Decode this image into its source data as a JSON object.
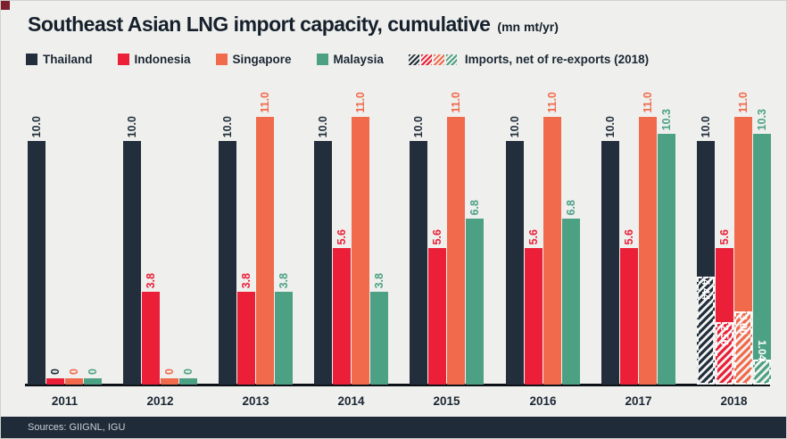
{
  "header": {
    "title": "Southeast Asian LNG import capacity, cumulative",
    "unit": "(mn mt/yr)"
  },
  "legend": {
    "items": [
      {
        "label": "Thailand",
        "color": "#222e3c"
      },
      {
        "label": "Indonesia",
        "color": "#eb1f38"
      },
      {
        "label": "Singapore",
        "color": "#f16a4c"
      },
      {
        "label": "Malaysia",
        "color": "#4ca184"
      }
    ],
    "imports_item": {
      "label": "Imports, net of re-exports (2018)",
      "swatch_colors": [
        "#222e3c",
        "#eb1f38",
        "#f16a4c",
        "#4ca184"
      ]
    }
  },
  "chart_data": {
    "type": "bar",
    "title": "Southeast Asian LNG import capacity, cumulative",
    "xlabel": "",
    "ylabel": "mn mt/yr",
    "ylim": [
      0,
      11.5
    ],
    "grid": false,
    "legend_position": "top",
    "categories": [
      "2011",
      "2012",
      "2013",
      "2014",
      "2015",
      "2016",
      "2017",
      "2018"
    ],
    "series": [
      {
        "name": "Thailand",
        "color": "#222e3c",
        "values": [
          10.0,
          10.0,
          10.0,
          10.0,
          10.0,
          10.0,
          10.0,
          10.0
        ],
        "labels": [
          "10.0",
          "10.0",
          "10.0",
          "10.0",
          "10.0",
          "10.0",
          "10.0",
          "10.0"
        ]
      },
      {
        "name": "Indonesia",
        "color": "#eb1f38",
        "values": [
          0,
          3.8,
          3.8,
          5.6,
          5.6,
          5.6,
          5.6,
          5.6
        ],
        "labels": [
          "0",
          "3.8",
          "3.8",
          "5.6",
          "5.6",
          "5.6",
          "5.6",
          "5.6"
        ]
      },
      {
        "name": "Singapore",
        "color": "#f16a4c",
        "values": [
          0,
          0,
          11.0,
          11.0,
          11.0,
          11.0,
          11.0,
          11.0
        ],
        "labels": [
          "0",
          "0",
          "11.0",
          "11.0",
          "11.0",
          "11.0",
          "11.0",
          "11.0"
        ]
      },
      {
        "name": "Malaysia",
        "color": "#4ca184",
        "values": [
          0,
          0,
          3.8,
          3.8,
          6.8,
          6.8,
          10.3,
          10.3
        ],
        "labels": [
          "0",
          "0",
          "3.8",
          "3.8",
          "6.8",
          "6.8",
          "10.3",
          "10.3"
        ]
      }
    ],
    "label_overrides": [
      {
        "series": "Indonesia",
        "category": "2011",
        "color": "#222e3c"
      }
    ],
    "imports_overlay": {
      "name": "Imports, net of re-exports (2018)",
      "year": "2018",
      "values": [
        4.44,
        2.56,
        3.0,
        1.04
      ],
      "labels": [
        "4.44",
        "2.56",
        "3.00",
        "1.04"
      ]
    }
  },
  "footer": {
    "sources_label": "Sources: GIIGNL, IGU"
  }
}
